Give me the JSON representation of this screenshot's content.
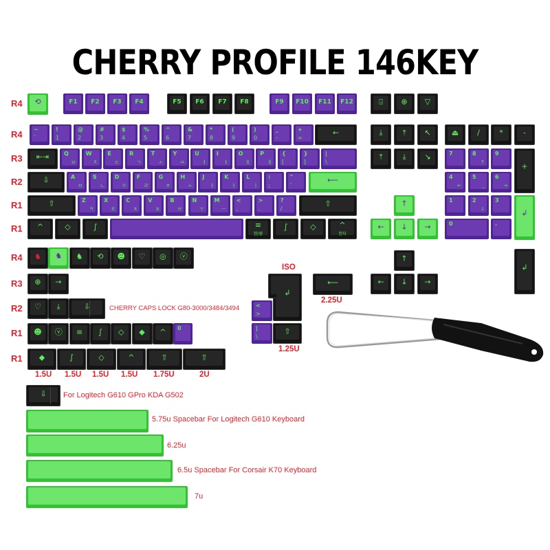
{
  "title": "CHERRY PROFILE 146KEY",
  "colors": {
    "purple": "#6c3bb2",
    "black": "#262626",
    "green": "#6ce56a",
    "legend_green": "#5cf05a",
    "label_red": "#e8202a"
  },
  "row_labels": [
    "R4",
    "R4",
    "R3",
    "R2",
    "R1",
    "R1",
    "R4",
    "R3",
    "R2",
    "R1",
    "R1"
  ],
  "captions": {
    "caps_lock": "CHERRY CAPS LOCK G80-3000/3484/3494",
    "iso": "ISO",
    "u225": "2.25U",
    "u125": "1.25U",
    "mod_sizes": [
      "1.5U",
      "1.5U",
      "1.5U",
      "1.5U",
      "1.75U",
      "2U"
    ],
    "logitech": "For Logitech G610  GPro KDA G502",
    "space_575": "5.75u Spacebar For Logitech G610 Keyboard",
    "space_625": "6.25u",
    "space_65": "6.5u Spacebar For Corsair K70 Keyboard",
    "space_7": "7u"
  },
  "keys": [
    {
      "name": "esc",
      "color": "green",
      "c": "⟲"
    },
    {
      "name": "f1",
      "color": "purple",
      "f": "F1"
    },
    {
      "name": "f2",
      "color": "purple",
      "f": "F2"
    },
    {
      "name": "f3",
      "color": "purple",
      "f": "F3"
    },
    {
      "name": "f4",
      "color": "purple",
      "f": "F4"
    },
    {
      "name": "f5",
      "color": "black",
      "f": "F5"
    },
    {
      "name": "f6",
      "color": "black",
      "f": "F6"
    },
    {
      "name": "f7",
      "color": "black",
      "f": "F7"
    },
    {
      "name": "f8",
      "color": "black",
      "f": "F8"
    },
    {
      "name": "f9",
      "color": "purple",
      "f": "F9"
    },
    {
      "name": "f10",
      "color": "purple",
      "f": "F10"
    },
    {
      "name": "f11",
      "color": "purple",
      "f": "F11"
    },
    {
      "name": "f12",
      "color": "purple",
      "f": "F12"
    },
    {
      "name": "grave",
      "color": "purple",
      "t": "~",
      "b": "`"
    },
    {
      "name": "1",
      "color": "purple",
      "t": "!",
      "b": "1"
    },
    {
      "name": "2",
      "color": "purple",
      "t": "@",
      "b": "2"
    },
    {
      "name": "3",
      "color": "purple",
      "t": "#",
      "b": "3"
    },
    {
      "name": "4",
      "color": "purple",
      "t": "$",
      "b": "4"
    },
    {
      "name": "5",
      "color": "purple",
      "t": "%",
      "b": "5"
    },
    {
      "name": "6",
      "color": "purple",
      "t": "^",
      "b": "6"
    },
    {
      "name": "7",
      "color": "purple",
      "t": "&",
      "b": "7"
    },
    {
      "name": "8",
      "color": "purple",
      "t": "*",
      "b": "8"
    },
    {
      "name": "9",
      "color": "purple",
      "t": "(",
      "b": "9"
    },
    {
      "name": "0",
      "color": "purple",
      "t": ")",
      "b": "0"
    },
    {
      "name": "minus",
      "color": "purple",
      "t": "_",
      "b": "-"
    },
    {
      "name": "equal",
      "color": "purple",
      "t": "+",
      "b": "="
    },
    {
      "name": "backspace",
      "color": "black",
      "c": "←"
    },
    {
      "name": "tab",
      "color": "black",
      "c": "⇤⇥"
    },
    {
      "name": "q",
      "color": "purple",
      "t": "Q",
      "k": "ㅂ"
    },
    {
      "name": "w",
      "color": "purple",
      "t": "W",
      "k": "ㅈ"
    },
    {
      "name": "e",
      "color": "purple",
      "t": "E",
      "k": "ㄷ"
    },
    {
      "name": "r",
      "color": "purple",
      "t": "R",
      "k": "ㄱ"
    },
    {
      "name": "t",
      "color": "purple",
      "t": "T",
      "k": "ㅅ"
    },
    {
      "name": "y",
      "color": "purple",
      "t": "Y",
      "k": "ㅛ"
    },
    {
      "name": "u",
      "color": "purple",
      "t": "U",
      "k": "ㅕ"
    },
    {
      "name": "i",
      "color": "purple",
      "t": "I",
      "k": "ㅑ"
    },
    {
      "name": "o",
      "color": "purple",
      "t": "O",
      "k": "ㅐ"
    },
    {
      "name": "p",
      "color": "purple",
      "t": "P",
      "k": "ㅔ"
    },
    {
      "name": "lbracket",
      "color": "purple",
      "t": "{",
      "b": "["
    },
    {
      "name": "rbracket",
      "color": "purple",
      "t": "}",
      "b": "]"
    },
    {
      "name": "backslash",
      "color": "purple",
      "t": "|",
      "b": "\\"
    },
    {
      "name": "capslock",
      "color": "black",
      "c": "⇩"
    },
    {
      "name": "a",
      "color": "purple",
      "t": "A",
      "k": "ㅁ"
    },
    {
      "name": "s",
      "color": "purple",
      "t": "S",
      "k": "ㄴ"
    },
    {
      "name": "d",
      "color": "purple",
      "t": "D",
      "k": "ㅇ"
    },
    {
      "name": "f",
      "color": "purple",
      "t": "F",
      "k": "ㄹ"
    },
    {
      "name": "g",
      "color": "purple",
      "t": "G",
      "k": "ㅎ"
    },
    {
      "name": "h",
      "color": "purple",
      "t": "H",
      "k": "ㅗ"
    },
    {
      "name": "j",
      "color": "purple",
      "t": "J",
      "k": "ㅓ"
    },
    {
      "name": "k",
      "color": "purple",
      "t": "K",
      "k": "ㅏ"
    },
    {
      "name": "l",
      "color": "purple",
      "t": "L",
      "k": "ㅣ"
    },
    {
      "name": "semicolon",
      "color": "purple",
      "t": ":",
      "b": ";"
    },
    {
      "name": "quote",
      "color": "purple",
      "t": "\"",
      "b": "'"
    },
    {
      "name": "enter",
      "color": "green",
      "c": "⟵"
    },
    {
      "name": "lshift",
      "color": "black",
      "c": "⇧"
    },
    {
      "name": "z",
      "color": "purple",
      "t": "Z",
      "k": "ㅋ"
    },
    {
      "name": "x",
      "color": "purple",
      "t": "X",
      "k": "ㅌ"
    },
    {
      "name": "c",
      "color": "purple",
      "t": "C",
      "k": "ㅊ"
    },
    {
      "name": "v",
      "color": "purple",
      "t": "V",
      "k": "ㅍ"
    },
    {
      "name": "b",
      "color": "purple",
      "t": "B",
      "k": "ㅠ"
    },
    {
      "name": "n",
      "color": "purple",
      "t": "N",
      "k": "ㅜ"
    },
    {
      "name": "m",
      "color": "purple",
      "t": "M",
      "k": "ㅡ"
    },
    {
      "name": "comma",
      "color": "purple",
      "t": "<",
      "b": ","
    },
    {
      "name": "period",
      "color": "purple",
      "t": ">",
      "b": "."
    },
    {
      "name": "slash",
      "color": "purple",
      "t": "?",
      "b": "/"
    },
    {
      "name": "rshift",
      "color": "black",
      "c": "⇧"
    },
    {
      "name": "lctrl",
      "color": "black",
      "c": "^"
    },
    {
      "name": "lwin",
      "color": "black",
      "c": "◇"
    },
    {
      "name": "lalt",
      "color": "black",
      "c": "∫"
    },
    {
      "name": "spacebar",
      "color": "purple"
    },
    {
      "name": "menu",
      "color": "black",
      "c": "≡",
      "s": "한/영"
    },
    {
      "name": "ralt",
      "color": "black",
      "c": "∫"
    },
    {
      "name": "rwin",
      "color": "black",
      "c": "◇"
    },
    {
      "name": "rctrl",
      "color": "black",
      "c": "^",
      "s": "한자"
    },
    {
      "name": "printscreen",
      "color": "black",
      "c": "⍗"
    },
    {
      "name": "scrolllock",
      "color": "black",
      "c": "⊕"
    },
    {
      "name": "pause",
      "color": "black",
      "c": "▽"
    },
    {
      "name": "insert",
      "color": "black",
      "c": "⤓"
    },
    {
      "name": "home",
      "color": "black",
      "c": "⤒"
    },
    {
      "name": "pageup",
      "color": "black",
      "c": "↖"
    },
    {
      "name": "delete",
      "color": "black",
      "c": "⤒"
    },
    {
      "name": "end",
      "color": "black",
      "c": "⤓"
    },
    {
      "name": "pagedown",
      "color": "black",
      "c": "↘"
    },
    {
      "name": "numlock",
      "color": "black",
      "c": "⏏"
    },
    {
      "name": "num-divide",
      "color": "black",
      "c": "/"
    },
    {
      "name": "num-multiply",
      "color": "black",
      "c": "*"
    },
    {
      "name": "num-minus",
      "color": "black",
      "c": "-"
    },
    {
      "name": "num7",
      "color": "purple",
      "t": "7"
    },
    {
      "name": "num8",
      "color": "purple",
      "t": "8",
      "k": "↑"
    },
    {
      "name": "num9",
      "color": "purple",
      "t": "9"
    },
    {
      "name": "num-plus",
      "color": "black",
      "c": "+"
    },
    {
      "name": "num4",
      "color": "purple",
      "t": "4",
      "k": "←"
    },
    {
      "name": "num5",
      "color": "purple",
      "t": "5",
      "k": "_"
    },
    {
      "name": "num6",
      "color": "purple",
      "t": "6",
      "k": "→"
    },
    {
      "name": "num1",
      "color": "purple",
      "t": "1"
    },
    {
      "name": "num2",
      "color": "purple",
      "t": "2",
      "k": "↓"
    },
    {
      "name": "num3",
      "color": "purple",
      "t": "3"
    },
    {
      "name": "num-enter",
      "color": "green",
      "c": "↲"
    },
    {
      "name": "num0",
      "color": "purple",
      "t": "0"
    },
    {
      "name": "num-decimal",
      "color": "purple",
      "t": "."
    },
    {
      "name": "arrow-up",
      "color": "green",
      "c": "↑"
    },
    {
      "name": "arrow-left",
      "color": "green",
      "c": "←"
    },
    {
      "name": "arrow-down",
      "color": "green",
      "c": "↓"
    },
    {
      "name": "arrow-right",
      "color": "green",
      "c": "→"
    },
    {
      "name": "alt-arrow-up",
      "color": "black",
      "c": "↑"
    },
    {
      "name": "alt-arrow-left",
      "color": "black",
      "c": "←"
    },
    {
      "name": "alt-arrow-down",
      "color": "black",
      "c": "↓"
    },
    {
      "name": "alt-arrow-right",
      "color": "black",
      "c": "→"
    },
    {
      "name": "alt-num-enter",
      "color": "black",
      "c": "↲"
    },
    {
      "name": "extra-esc-red",
      "color": "black",
      "c": "♞",
      "tint": "#e8202a"
    },
    {
      "name": "extra-esc-green",
      "color": "green",
      "c": "♞"
    },
    {
      "name": "extra-esc-black",
      "color": "black",
      "c": "♞"
    },
    {
      "name": "extra-timer",
      "color": "black",
      "c": "⟲"
    },
    {
      "name": "extra-face",
      "color": "black",
      "c": "☻"
    },
    {
      "name": "extra-heart",
      "color": "black",
      "c": "♡"
    },
    {
      "name": "extra-target",
      "color": "black",
      "c": "◎"
    },
    {
      "name": "extra-vcircle",
      "color": "black",
      "c": "ⓥ"
    },
    {
      "name": "extra-tab",
      "color": "black",
      "c": "⊕"
    },
    {
      "name": "extra-tab-arrow",
      "color": "black",
      "c": "→"
    },
    {
      "name": "extra-caps-heart",
      "color": "black",
      "c": "♡"
    },
    {
      "name": "extra-caps-down",
      "color": "black",
      "c": "⤓"
    },
    {
      "name": "extra-caps-stepped",
      "color": "black",
      "c": "⇩"
    },
    {
      "name": "extra-mod-face",
      "color": "black",
      "c": "☻"
    },
    {
      "name": "extra-mod-vcircle",
      "color": "black",
      "c": "ⓥ"
    },
    {
      "name": "extra-mod-menu",
      "color": "black",
      "c": "≡"
    },
    {
      "name": "extra-mod-alt",
      "color": "black",
      "c": "∫"
    },
    {
      "name": "extra-mod-win",
      "color": "black",
      "c": "◇"
    },
    {
      "name": "extra-mod-win-filled",
      "color": "black",
      "c": "◆"
    },
    {
      "name": "extra-mod-ctrl",
      "color": "black",
      "c": "^"
    },
    {
      "name": "extra-num0",
      "color": "purple",
      "t": "0"
    },
    {
      "name": "mod-150-win-filled",
      "color": "black",
      "c": "◆"
    },
    {
      "name": "mod-150-alt",
      "color": "black",
      "c": "∫"
    },
    {
      "name": "mod-150-win",
      "color": "black",
      "c": "◇"
    },
    {
      "name": "mod-150-ctrl",
      "color": "black",
      "c": "^"
    },
    {
      "name": "mod-175-shift",
      "color": "black",
      "c": "⇧"
    },
    {
      "name": "mod-200-shift",
      "color": "black",
      "c": "⇧"
    },
    {
      "name": "logitech-caps",
      "color": "black",
      "c": "⇩"
    },
    {
      "name": "iso-enter",
      "color": "black",
      "c": "↲"
    },
    {
      "name": "iso-shift",
      "color": "black",
      "c": "⇧"
    },
    {
      "name": "iso-angle",
      "color": "purple",
      "t": "<",
      "b": ">"
    },
    {
      "name": "iso-pipe",
      "color": "purple",
      "t": "|",
      "b": "\\"
    },
    {
      "name": "enter-225",
      "color": "black",
      "c": "⟵"
    },
    {
      "name": "spacebar-575",
      "color": "green"
    },
    {
      "name": "spacebar-625",
      "color": "green"
    },
    {
      "name": "spacebar-650",
      "color": "green"
    },
    {
      "name": "spacebar-700",
      "color": "green"
    }
  ]
}
